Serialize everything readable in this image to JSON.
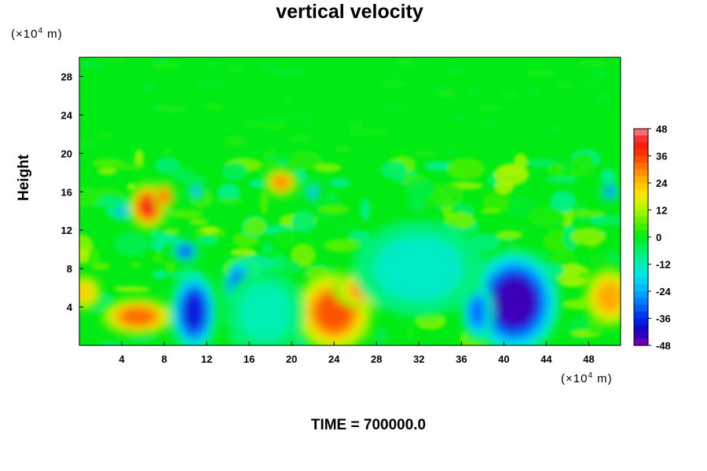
{
  "chart_data": {
    "type": "heatmap",
    "title": "vertical velocity",
    "ylabel": "Height",
    "x_units": "(×10⁴ m)",
    "y_units": "(×10⁴ m)",
    "x_units_base": "(×10",
    "x_units_exp": "4",
    "x_units_tail": " m)",
    "y_units_base": "(×10",
    "y_units_exp": "4",
    "y_units_tail": " m)",
    "footer": "TIME = 700000.0",
    "xlim": [
      0,
      51
    ],
    "ylim": [
      0,
      30
    ],
    "x_ticks": [
      4,
      8,
      12,
      16,
      20,
      24,
      28,
      32,
      36,
      40,
      44,
      48
    ],
    "y_ticks": [
      4,
      8,
      12,
      16,
      20,
      24,
      28
    ],
    "colorbar": {
      "min": -48,
      "max": 48,
      "ticks": [
        48,
        36,
        24,
        12,
        0,
        -12,
        -24,
        -36,
        -48
      ]
    },
    "features": [
      {
        "x": 24,
        "y": 3.5,
        "value": 34,
        "rx": 3.0,
        "ry": 3.5
      },
      {
        "x": 27,
        "y": 5.8,
        "value": 28,
        "rx": 2.5,
        "ry": 1.6
      },
      {
        "x": 5.5,
        "y": 3.0,
        "value": 32,
        "rx": 2.8,
        "ry": 1.6
      },
      {
        "x": 6.5,
        "y": 14.5,
        "value": 40,
        "rx": 1.5,
        "ry": 2.0
      },
      {
        "x": 8.0,
        "y": 15.5,
        "value": 34,
        "rx": 0.8,
        "ry": 1.2
      },
      {
        "x": 19.0,
        "y": 17.0,
        "value": 30,
        "rx": 1.3,
        "ry": 1.2
      },
      {
        "x": 15.0,
        "y": 5.0,
        "value": 40,
        "rx": 0.6,
        "ry": 1.0
      },
      {
        "x": 50.0,
        "y": 5.0,
        "value": 26,
        "rx": 2.0,
        "ry": 2.5
      },
      {
        "x": 0.5,
        "y": 5.5,
        "value": 22,
        "rx": 1.3,
        "ry": 1.5
      },
      {
        "x": 10.8,
        "y": 3.5,
        "value": -38,
        "rx": 1.8,
        "ry": 3.5
      },
      {
        "x": 15.0,
        "y": 6.0,
        "value": -36,
        "rx": 1.2,
        "ry": 2.5
      },
      {
        "x": 41.0,
        "y": 4.5,
        "value": -44,
        "rx": 3.5,
        "ry": 4.5
      },
      {
        "x": 37.5,
        "y": 3.5,
        "value": -30,
        "rx": 1.2,
        "ry": 2.5
      },
      {
        "x": 10.0,
        "y": 9.8,
        "value": -34,
        "rx": 1.0,
        "ry": 1.0
      },
      {
        "x": 50.0,
        "y": 16.0,
        "value": -30,
        "rx": 0.7,
        "ry": 0.8
      },
      {
        "x": 4.0,
        "y": 14.0,
        "value": -28,
        "rx": 0.5,
        "ry": 0.7
      },
      {
        "x": 11.0,
        "y": 16.0,
        "value": -24,
        "rx": 0.6,
        "ry": 0.8
      },
      {
        "x": 22.0,
        "y": 16.0,
        "value": -24,
        "rx": 0.6,
        "ry": 0.8
      },
      {
        "x": 32.0,
        "y": 8.0,
        "value": -14,
        "rx": 5.0,
        "ry": 4.0
      },
      {
        "x": 17.5,
        "y": 3.5,
        "value": -12,
        "rx": 3.0,
        "ry": 3.5
      }
    ]
  }
}
